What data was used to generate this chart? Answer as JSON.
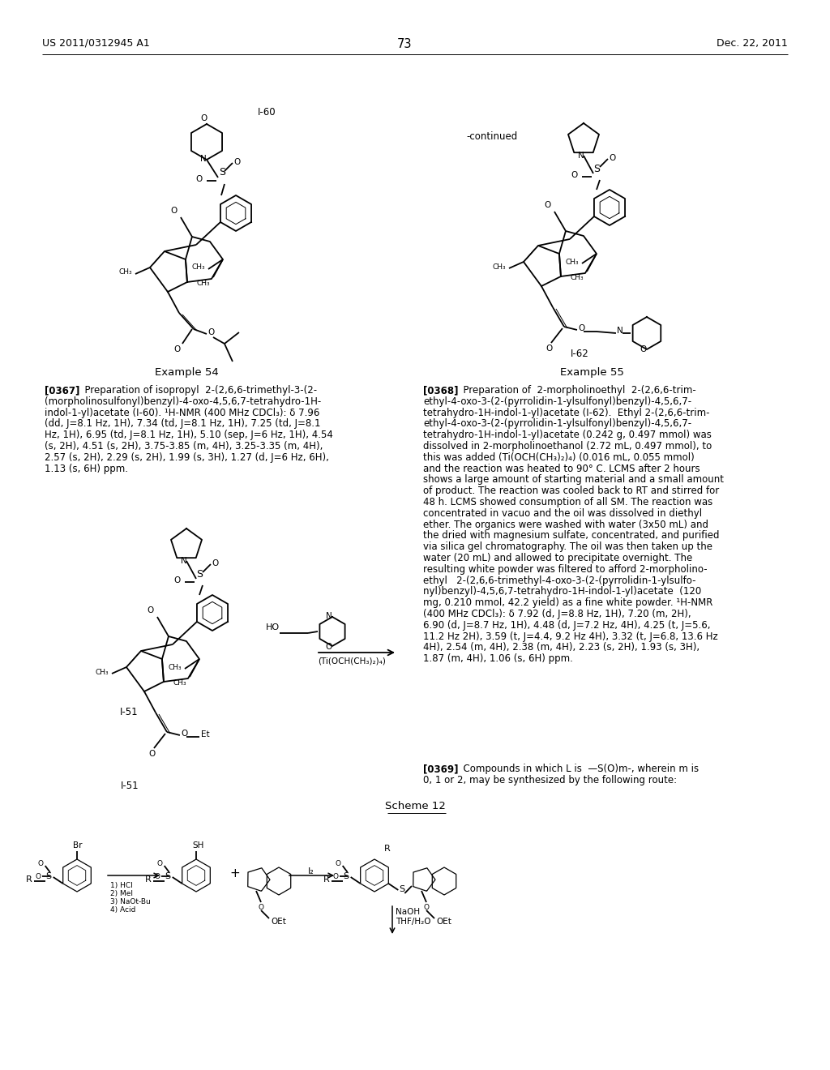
{
  "bg": "#ffffff",
  "header_left": "US 2011/0312945 A1",
  "header_right": "Dec. 22, 2011",
  "page_num": "73",
  "label_I60": "I-60",
  "label_I62": "I-62",
  "label_I51": "I-51",
  "label_continued": "-continued",
  "label_scheme12": "Scheme 12",
  "ex54_title": "Example 54",
  "ex55_title": "Example 55",
  "ex54_lines": [
    "[0367]   Preparation of isopropyl  2-(2,6,6-trimethyl-3-(2-",
    "(morpholinosulfonyl)benzyl)-4-oxo-4,5,6,7-tetrahydro-1H-",
    "indol-1-yl)acetate (I-60). ¹H-NMR (400 MHz CDCl₃): δ 7.96",
    "(dd, J=8.1 Hz, 1H), 7.34 (td, J=8.1 Hz, 1H), 7.25 (td, J=8.1",
    "Hz, 1H), 6.95 (td, J=8.1 Hz, 1H), 5.10 (sep, J=6 Hz, 1H), 4.54",
    "(s, 2H), 4.51 (s, 2H), 3.75-3.85 (m, 4H), 3.25-3.35 (m, 4H),",
    "2.57 (s, 2H), 2.29 (s, 2H), 1.99 (s, 3H), 1.27 (d, J=6 Hz, 6H),",
    "1.13 (s, 6H) ppm."
  ],
  "ex55_lines": [
    "[0368]   Preparation of  2-morpholinoethyl  2-(2,6,6-trim-",
    "ethyl-4-oxo-3-(2-(pyrrolidin-1-ylsulfonyl)benzyl)-4,5,6,7-",
    "tetrahydro-1H-indol-1-yl)acetate (I-62).  Ethyl 2-(2,6,6-trim-",
    "ethyl-4-oxo-3-(2-(pyrrolidin-1-ylsulfonyl)benzyl)-4,5,6,7-",
    "tetrahydro-1H-indol-1-yl)acetate (0.242 g, 0.497 mmol) was",
    "dissolved in 2-morpholinoethanol (2.72 mL, 0.497 mmol), to",
    "this was added (Ti(OCH(CH₃)₂)₄) (0.016 mL, 0.055 mmol)",
    "and the reaction was heated to 90° C. LCMS after 2 hours",
    "shows a large amount of starting material and a small amount",
    "of product. The reaction was cooled back to RT and stirred for",
    "48 h. LCMS showed consumption of all SM. The reaction was",
    "concentrated in vacuo and the oil was dissolved in diethyl",
    "ether. The organics were washed with water (3x50 mL) and",
    "the dried with magnesium sulfate, concentrated, and purified",
    "via silica gel chromatography. The oil was then taken up the",
    "water (20 mL) and allowed to precipitate overnight. The",
    "resulting white powder was filtered to afford 2-morpholino-",
    "ethyl   2-(2,6,6-trimethyl-4-oxo-3-(2-(pyrrolidin-1-ylsulfo-",
    "nyl)benzyl)-4,5,6,7-tetrahydro-1H-indol-1-yl)acetate  (120",
    "mg, 0.210 mmol, 42.2 yield) as a fine white powder. ¹H-NMR",
    "(400 MHz CDCl₃): δ 7.92 (d, J=8.8 Hz, 1H), 7.20 (m, 2H),",
    "6.90 (d, J=8.7 Hz, 1H), 4.48 (d, J=7.2 Hz, 4H), 4.25 (t, J=5.6,",
    "11.2 Hz 2H), 3.59 (t, J=4.4, 9.2 Hz 4H), 3.32 (t, J=6.8, 13.6 Hz",
    "4H), 2.54 (m, 4H), 2.38 (m, 4H), 2.23 (s, 2H), 1.93 (s, 3H),",
    "1.87 (m, 4H), 1.06 (s, 6H) ppm."
  ],
  "p369_lines": [
    "[0369]   Compounds in which L is  —S(O)m-, wherein m is",
    "0, 1 or 2, may be synthesized by the following route:"
  ],
  "reagents1": [
    "1) HCl",
    "2) MeI",
    "3) NaOt-Bu",
    "4) Acid"
  ],
  "reagent2": "I₂",
  "reagents3": [
    "NaOH",
    "THF/H₂O"
  ]
}
